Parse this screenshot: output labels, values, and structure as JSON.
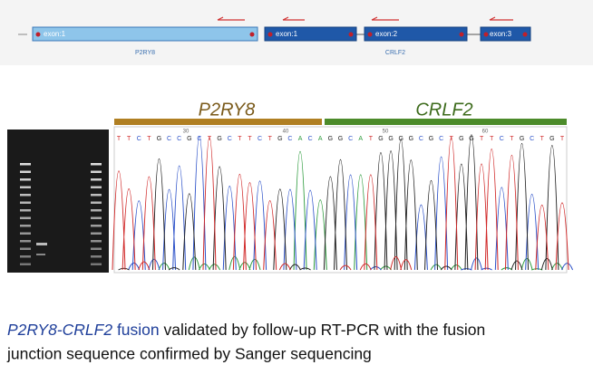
{
  "track": {
    "exons": [
      "exon:1",
      "exon:1",
      "exon:2",
      "exon:3"
    ],
    "genes": [
      "P2RY8",
      "CRLF2"
    ]
  },
  "sanger": {
    "segments": [
      "P2RY8",
      "CRLF2"
    ],
    "ruler": [
      "30",
      "40",
      "50",
      "60"
    ],
    "bases": [
      "T",
      "T",
      "C",
      "T",
      "G",
      "C",
      "C",
      "G",
      "C",
      "T",
      "G",
      "C",
      "T",
      "T",
      "C",
      "T",
      "G",
      "C",
      "A",
      "C",
      "A",
      "G",
      "G",
      "C",
      "A",
      "T",
      "G",
      "G",
      "G",
      "G",
      "C",
      "G",
      "C",
      "T",
      "G",
      "G",
      "T",
      "T",
      "C",
      "T",
      "G",
      "C",
      "T",
      "G",
      "T"
    ]
  },
  "caption": {
    "genes": "P2RY8-CRLF2",
    "fusion": "fusion",
    "rest": "validated by follow-up RT-PCR with the fusion",
    "line2": "junction sequence confirmed by Sanger sequencing"
  }
}
